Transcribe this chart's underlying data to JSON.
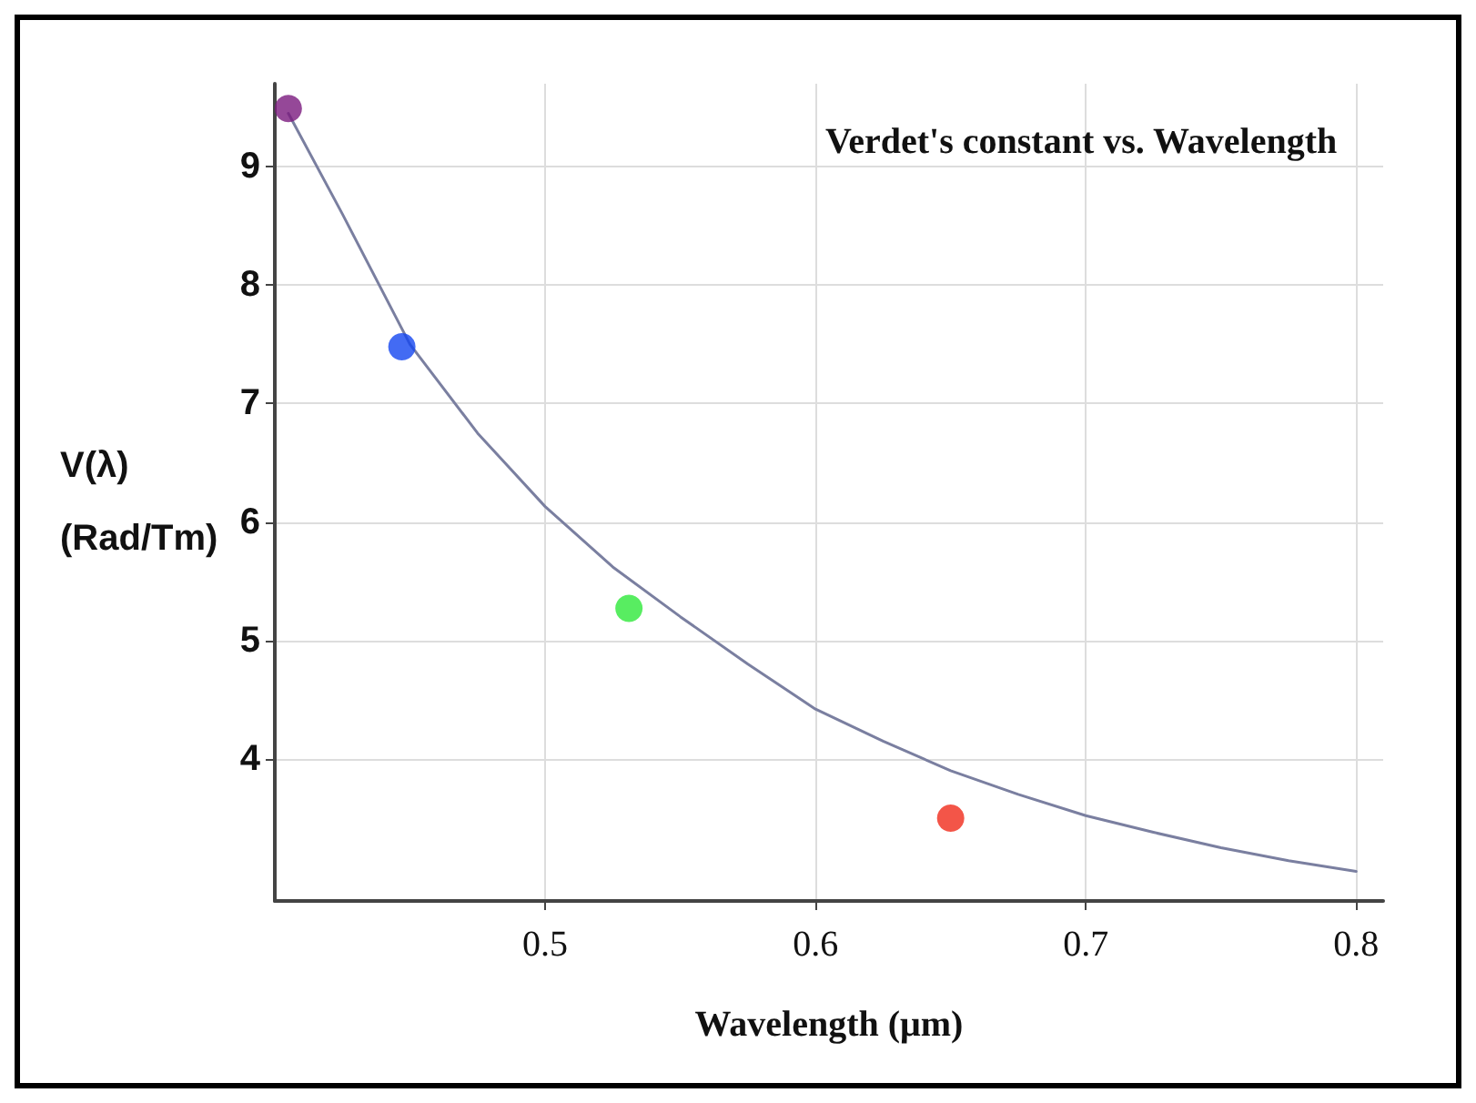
{
  "chart_data": {
    "type": "scatter",
    "title": "Verdet's constant vs. Wavelength",
    "xlabel": "Wavelength (μm)",
    "ylabel": "V(λ) (Rad/Tm)",
    "xlim": [
      0.4,
      0.81
    ],
    "xticks": [
      0.5,
      0.6,
      0.7,
      0.8
    ],
    "ylim": [
      2.8,
      9.7
    ],
    "yticks": [
      4,
      5,
      6,
      7,
      8,
      9
    ],
    "grid": true,
    "series": [
      {
        "marker": "circle",
        "x": [
          0.405,
          0.447,
          0.531,
          0.65
        ],
        "values": [
          9.49,
          7.48,
          5.27,
          3.5
        ],
        "colors": [
          "#7b1a7e",
          "#1446f0",
          "#2ee83a",
          "#f02a1a"
        ]
      },
      {
        "type": "line",
        "marker": "none",
        "line_style": "solid",
        "color": "#7a7fa0",
        "x": [
          0.405,
          0.425,
          0.45,
          0.475,
          0.5,
          0.525,
          0.55,
          0.575,
          0.6,
          0.625,
          0.65,
          0.675,
          0.7,
          0.725,
          0.75,
          0.775,
          0.8
        ],
        "values": [
          9.45,
          8.6,
          7.5,
          6.75,
          6.13,
          5.62,
          5.2,
          4.8,
          4.42,
          4.15,
          3.9,
          3.7,
          3.52,
          3.38,
          3.25,
          3.14,
          3.05
        ]
      }
    ]
  }
}
